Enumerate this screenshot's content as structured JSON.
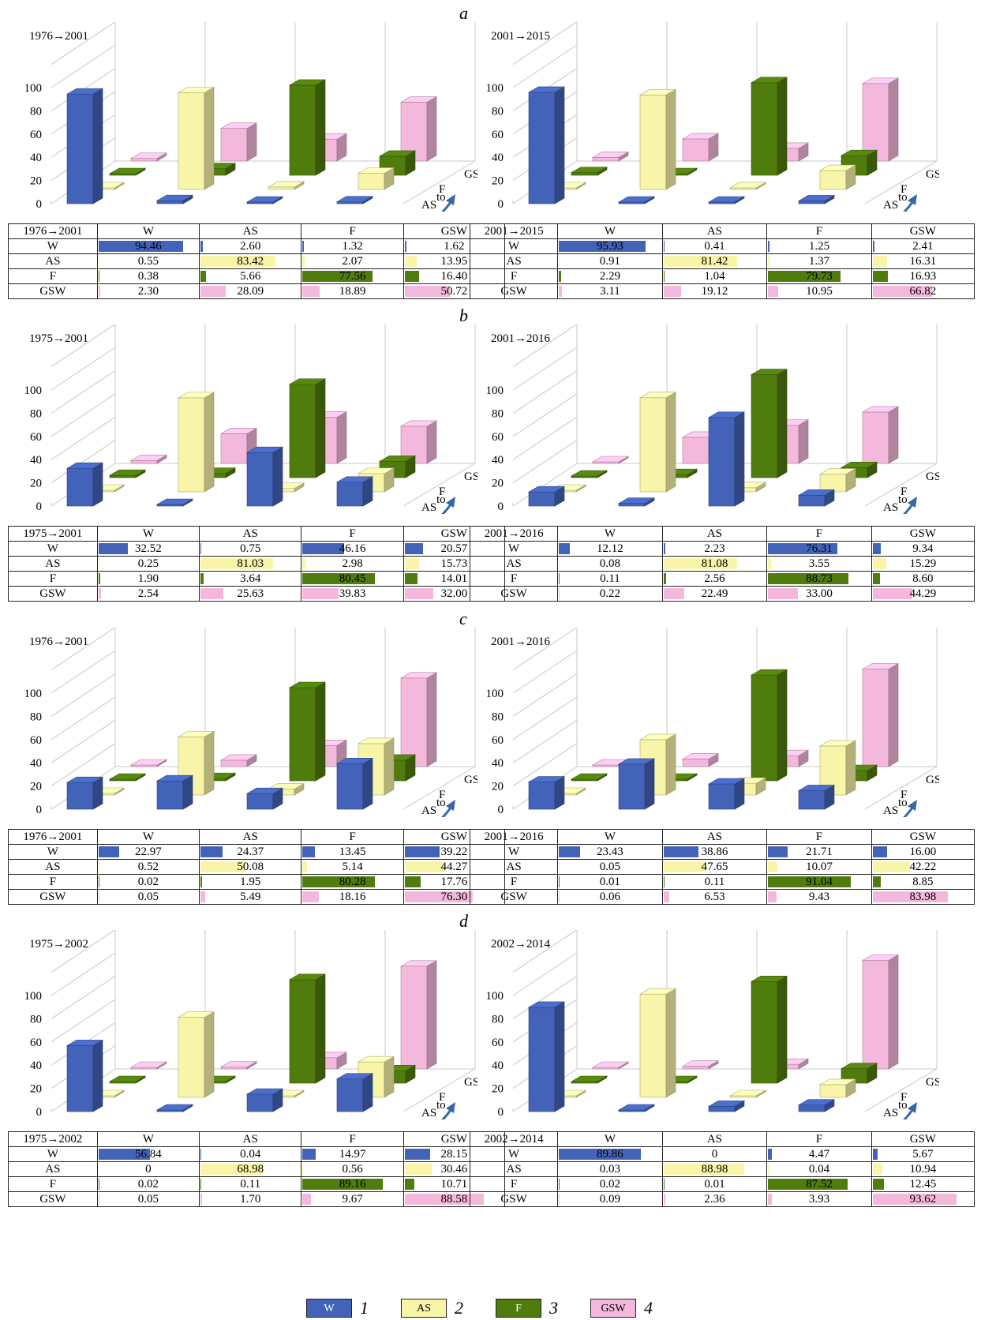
{
  "colors": {
    "W": "#4363b8",
    "AS": "#f8f4a8",
    "F": "#4f7c0c",
    "GSW": "#f4b8dc"
  },
  "axis": {
    "ticks": [
      "0",
      "20",
      "40",
      "60",
      "80",
      "100"
    ],
    "from_label": "from",
    "to_label": "to"
  },
  "legend": [
    {
      "code": "W",
      "num": "1"
    },
    {
      "code": "AS",
      "num": "2"
    },
    {
      "code": "F",
      "num": "3"
    },
    {
      "code": "GSW",
      "num": "4"
    }
  ],
  "chart_data": [
    {
      "type": "bar",
      "section": "a",
      "title": "1976→2001",
      "categories": [
        "W",
        "AS",
        "F",
        "GSW"
      ],
      "series": [
        {
          "name": "W",
          "values": [
            "94.46",
            "2.60",
            "1.32",
            "1.62"
          ]
        },
        {
          "name": "AS",
          "values": [
            "0.55",
            "83.42",
            "2.07",
            "13.95"
          ]
        },
        {
          "name": "F",
          "values": [
            "0.38",
            "5.66",
            "77.56",
            "16.40"
          ]
        },
        {
          "name": "GSW",
          "values": [
            "2.30",
            "28.09",
            "18.89",
            "50.72"
          ]
        }
      ],
      "ylim": [
        0,
        100
      ]
    },
    {
      "type": "bar",
      "section": "a",
      "title": "2001→2015",
      "categories": [
        "W",
        "AS",
        "F",
        "GSW"
      ],
      "series": [
        {
          "name": "W",
          "values": [
            "95.93",
            "0.41",
            "1.25",
            "2.41"
          ]
        },
        {
          "name": "AS",
          "values": [
            "0.91",
            "81.42",
            "1.37",
            "16.31"
          ]
        },
        {
          "name": "F",
          "values": [
            "2.29",
            "1.04",
            "79.73",
            "16.93"
          ]
        },
        {
          "name": "GSW",
          "values": [
            "3.11",
            "19.12",
            "10.95",
            "66.82"
          ]
        }
      ],
      "ylim": [
        0,
        100
      ]
    },
    {
      "type": "bar",
      "section": "b",
      "title": "1975→2001",
      "categories": [
        "W",
        "AS",
        "F",
        "GSW"
      ],
      "series": [
        {
          "name": "W",
          "values": [
            "32.52",
            "0.75",
            "46.16",
            "20.57"
          ]
        },
        {
          "name": "AS",
          "values": [
            "0.25",
            "81.03",
            "2.98",
            "15.73"
          ]
        },
        {
          "name": "F",
          "values": [
            "1.90",
            "3.64",
            "80.45",
            "14.01"
          ]
        },
        {
          "name": "GSW",
          "values": [
            "2.54",
            "25.63",
            "39.83",
            "32.00"
          ]
        }
      ],
      "ylim": [
        0,
        100
      ]
    },
    {
      "type": "bar",
      "section": "b",
      "title": "2001→2016",
      "categories": [
        "W",
        "AS",
        "F",
        "GSW"
      ],
      "series": [
        {
          "name": "W",
          "values": [
            "12.12",
            "2.23",
            "76.31",
            "9.34"
          ]
        },
        {
          "name": "AS",
          "values": [
            "0.08",
            "81.08",
            "3.55",
            "15.29"
          ]
        },
        {
          "name": "F",
          "values": [
            "0.11",
            "2.56",
            "88.73",
            "8.60"
          ]
        },
        {
          "name": "GSW",
          "values": [
            "0.22",
            "22.49",
            "33.00",
            "44.29"
          ]
        }
      ],
      "ylim": [
        0,
        100
      ]
    },
    {
      "type": "bar",
      "section": "c",
      "title": "1976→2001",
      "categories": [
        "W",
        "AS",
        "F",
        "GSW"
      ],
      "series": [
        {
          "name": "W",
          "values": [
            "22.97",
            "24.37",
            "13.45",
            "39.22"
          ]
        },
        {
          "name": "AS",
          "values": [
            "0.52",
            "50.08",
            "5.14",
            "44.27"
          ]
        },
        {
          "name": "F",
          "values": [
            "0.02",
            "1.95",
            "80.28",
            "17.76"
          ]
        },
        {
          "name": "GSW",
          "values": [
            "0.05",
            "5.49",
            "18.16",
            "76.30"
          ]
        }
      ],
      "ylim": [
        0,
        100
      ]
    },
    {
      "type": "bar",
      "section": "c",
      "title": "2001→2016",
      "categories": [
        "W",
        "AS",
        "F",
        "GSW"
      ],
      "series": [
        {
          "name": "W",
          "values": [
            "23.43",
            "38.86",
            "21.71",
            "16.00"
          ]
        },
        {
          "name": "AS",
          "values": [
            "0.05",
            "47.65",
            "10.07",
            "42.22"
          ]
        },
        {
          "name": "F",
          "values": [
            "0.01",
            "0.11",
            "91.04",
            "8.85"
          ]
        },
        {
          "name": "GSW",
          "values": [
            "0.06",
            "6.53",
            "9.43",
            "83.98"
          ]
        }
      ],
      "ylim": [
        0,
        100
      ]
    },
    {
      "type": "bar",
      "section": "d",
      "title": "1975→2002",
      "categories": [
        "W",
        "AS",
        "F",
        "GSW"
      ],
      "series": [
        {
          "name": "W",
          "values": [
            "56.84",
            "0.04",
            "14.97",
            "28.15"
          ]
        },
        {
          "name": "AS",
          "values": [
            "0",
            "68.98",
            "0.56",
            "30.46"
          ]
        },
        {
          "name": "F",
          "values": [
            "0.02",
            "0.11",
            "89.16",
            "10.71"
          ]
        },
        {
          "name": "GSW",
          "values": [
            "0.05",
            "1.70",
            "9.67",
            "88.58"
          ]
        }
      ],
      "ylim": [
        0,
        100
      ]
    },
    {
      "type": "bar",
      "section": "d",
      "title": "2002→2014",
      "categories": [
        "W",
        "AS",
        "F",
        "GSW"
      ],
      "series": [
        {
          "name": "W",
          "values": [
            "89.86",
            "0",
            "4.47",
            "5.67"
          ]
        },
        {
          "name": "AS",
          "values": [
            "0.03",
            "88.98",
            "0.04",
            "10.94"
          ]
        },
        {
          "name": "F",
          "values": [
            "0.02",
            "0.01",
            "87.52",
            "12.45"
          ]
        },
        {
          "name": "GSW",
          "values": [
            "0.09",
            "2.36",
            "3.93",
            "93.62"
          ]
        }
      ],
      "ylim": [
        0,
        100
      ]
    }
  ]
}
